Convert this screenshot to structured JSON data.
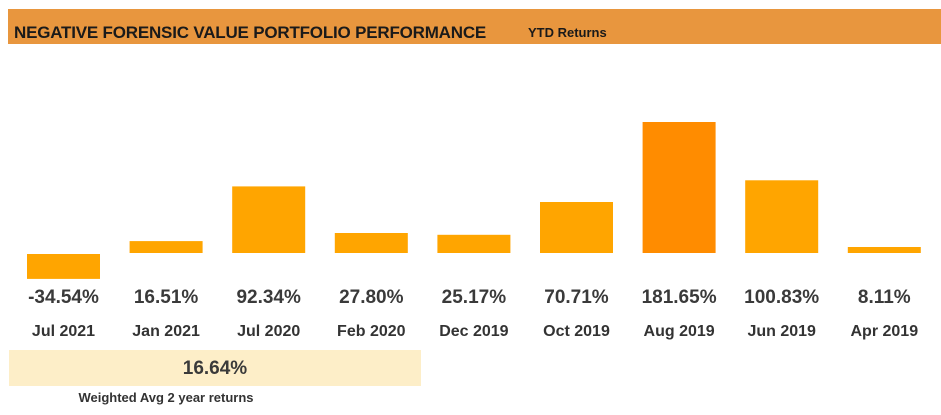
{
  "header": {
    "title": "NEGATIVE FORENSIC VALUE PORTFOLIO PERFORMANCE",
    "subtitle": "YTD Returns"
  },
  "chart_data": {
    "type": "bar",
    "categories": [
      "Jul 2021",
      "Jan 2021",
      "Jul 2020",
      "Feb 2020",
      "Dec 2019",
      "Oct 2019",
      "Aug 2019",
      "Jun 2019",
      "Apr 2019"
    ],
    "values": [
      -34.54,
      16.51,
      92.34,
      27.8,
      25.17,
      70.71,
      181.65,
      100.83,
      8.11
    ],
    "value_labels": [
      "-34.54%",
      "16.51%",
      "92.34%",
      "27.80%",
      "25.17%",
      "70.71%",
      "181.65%",
      "100.83%",
      "8.11%"
    ],
    "colors": {
      "bar": "#ffa500",
      "max_bar": "#ff8c00"
    },
    "grid": false,
    "legend": "none"
  },
  "summary": {
    "value": "16.64%",
    "caption": "Weighted Avg 2 year returns"
  }
}
